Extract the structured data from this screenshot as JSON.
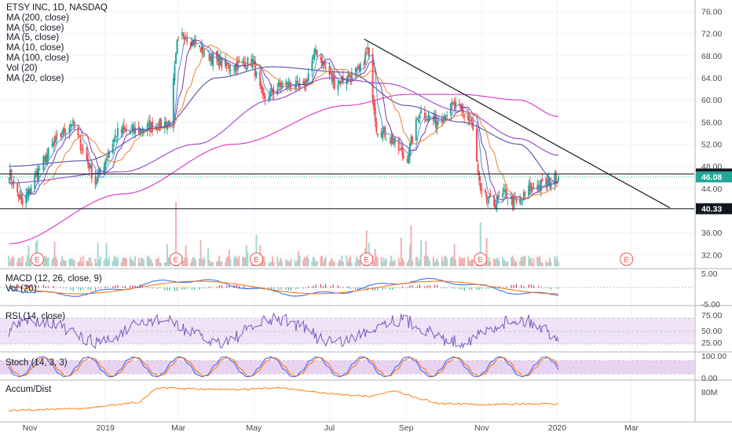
{
  "legend": {
    "title": "ETSY INC, 1D, NASDAQ",
    "items": [
      "MA (200, close)",
      "MA (50, close)",
      "MA (5, close)",
      "MA (10, close)",
      "MA (100, close)",
      "Vol (20)",
      "MA (20, close)"
    ]
  },
  "panes": {
    "macd": "MACD (12, 26, close, 9)",
    "vol": "Vol (20)",
    "rsi": "RSI (14, close)",
    "stoch": "Stoch (14, 3, 3)",
    "accum": "Accum/Dist"
  },
  "colors": {
    "up": "#26a69a",
    "down": "#ef5350",
    "ma200": "#e040c0",
    "ma50": "#5b62a8",
    "ma5": "#4f8fd6",
    "ma10": "#7c3a9e",
    "ma100": "#a050c8",
    "ma20": "#f08030",
    "trendline": "#131722",
    "rsi": "#7e57c2",
    "accum": "#ff7f0e"
  },
  "chart_data": {
    "type": "candlestick",
    "title": "ETSY INC, 1D, NASDAQ",
    "price_axis_ticks": [
      "76.00",
      "72.00",
      "68.00",
      "64.00",
      "60.00",
      "56.00",
      "52.00",
      "48.00",
      "44.00",
      "40.00",
      "36.00",
      "32.00"
    ],
    "price_ylim": [
      29.5,
      77.5
    ],
    "x_labels": [
      "Nov",
      "2019",
      "Mar",
      "May",
      "Jul",
      "Sep",
      "Nov",
      "2020",
      "Mar"
    ],
    "price_labels": {
      "last": "46.08",
      "resistance": "46.61",
      "support": "40.33"
    },
    "earnings_markers": [
      "Nov",
      "Feb",
      "May",
      "Jul",
      "Oct",
      "Feb"
    ],
    "close_anchors": [
      {
        "date": "2018-10-15",
        "close": 47
      },
      {
        "date": "2018-10-26",
        "close": 41
      },
      {
        "date": "2018-11-05",
        "close": 46
      },
      {
        "date": "2018-11-20",
        "close": 52
      },
      {
        "date": "2018-12-05",
        "close": 56
      },
      {
        "date": "2018-12-24",
        "close": 45
      },
      {
        "date": "2019-01-10",
        "close": 54
      },
      {
        "date": "2019-02-05",
        "close": 55
      },
      {
        "date": "2019-02-22",
        "close": 56
      },
      {
        "date": "2019-02-28",
        "close": 70
      },
      {
        "date": "2019-03-05",
        "close": 72
      },
      {
        "date": "2019-03-25",
        "close": 68
      },
      {
        "date": "2019-04-10",
        "close": 66
      },
      {
        "date": "2019-04-30",
        "close": 67
      },
      {
        "date": "2019-05-08",
        "close": 60
      },
      {
        "date": "2019-05-25",
        "close": 63
      },
      {
        "date": "2019-06-10",
        "close": 62
      },
      {
        "date": "2019-06-20",
        "close": 69
      },
      {
        "date": "2019-07-05",
        "close": 63
      },
      {
        "date": "2019-07-25",
        "close": 65
      },
      {
        "date": "2019-08-01",
        "close": 69
      },
      {
        "date": "2019-08-08",
        "close": 55
      },
      {
        "date": "2019-08-20",
        "close": 53
      },
      {
        "date": "2019-09-01",
        "close": 49
      },
      {
        "date": "2019-09-12",
        "close": 58
      },
      {
        "date": "2019-09-25",
        "close": 56
      },
      {
        "date": "2019-10-10",
        "close": 59
      },
      {
        "date": "2019-10-24",
        "close": 56
      },
      {
        "date": "2019-10-31",
        "close": 43
      },
      {
        "date": "2019-11-10",
        "close": 41
      },
      {
        "date": "2019-11-20",
        "close": 43
      },
      {
        "date": "2019-11-30",
        "close": 41
      },
      {
        "date": "2019-12-10",
        "close": 44
      },
      {
        "date": "2019-12-24",
        "close": 45
      },
      {
        "date": "2020-01-02",
        "close": 46.08
      }
    ],
    "moving_average_anchors": {
      "ma200": [
        {
          "date": "2018-10-15",
          "v": 34
        },
        {
          "date": "2019-01-15",
          "v": 43
        },
        {
          "date": "2019-04-15",
          "v": 52
        },
        {
          "date": "2019-07-15",
          "v": 59
        },
        {
          "date": "2019-09-01",
          "v": 61
        },
        {
          "date": "2019-10-15",
          "v": 61
        },
        {
          "date": "2019-12-01",
          "v": 60
        },
        {
          "date": "2020-01-02",
          "v": 57
        }
      ],
      "ma100": [
        {
          "date": "2018-10-15",
          "v": 45
        },
        {
          "date": "2019-01-15",
          "v": 47
        },
        {
          "date": "2019-03-15",
          "v": 52
        },
        {
          "date": "2019-05-15",
          "v": 60
        },
        {
          "date": "2019-07-01",
          "v": 64
        },
        {
          "date": "2019-08-15",
          "v": 63
        },
        {
          "date": "2019-10-15",
          "v": 58
        },
        {
          "date": "2019-12-01",
          "v": 53
        },
        {
          "date": "2020-01-02",
          "v": 50
        }
      ],
      "ma50": [
        {
          "date": "2018-10-15",
          "v": 48
        },
        {
          "date": "2018-12-15",
          "v": 49
        },
        {
          "date": "2019-02-15",
          "v": 55
        },
        {
          "date": "2019-04-01",
          "v": 64
        },
        {
          "date": "2019-05-15",
          "v": 66
        },
        {
          "date": "2019-07-15",
          "v": 65
        },
        {
          "date": "2019-09-01",
          "v": 59
        },
        {
          "date": "2019-10-15",
          "v": 56
        },
        {
          "date": "2019-12-01",
          "v": 52
        },
        {
          "date": "2020-01-02",
          "v": 45
        }
      ]
    },
    "trendline": [
      {
        "date": "2019-07-29",
        "price": 71
      },
      {
        "date": "2020-04-01",
        "price": 40.5
      }
    ],
    "rsi_levels": [
      70,
      50,
      30
    ],
    "rsi_axis_ticks": [
      "75.00",
      "50.00",
      "25.00"
    ],
    "stoch_axis_ticks": [
      "100.00",
      "0.00"
    ],
    "macd_axis_ticks": [
      "5.00",
      "-5.00"
    ],
    "accum_axis_ticks": [
      "80M"
    ]
  }
}
